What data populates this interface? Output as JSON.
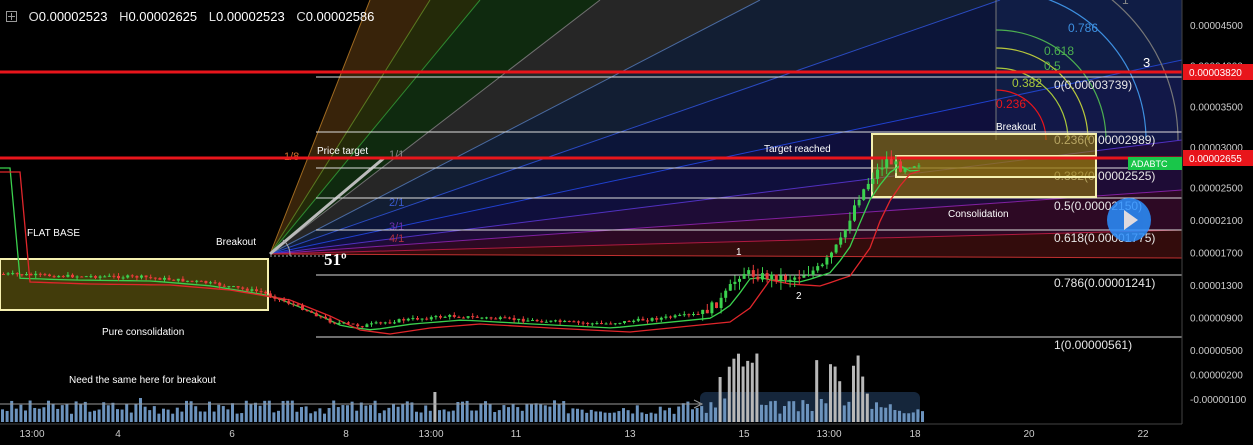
{
  "ohlc": {
    "open_label": "O",
    "open": "0.00002523",
    "high_label": "H",
    "high": "0.00002625",
    "low_label": "L",
    "low": "0.00002523",
    "close_label": "C",
    "close": "0.00002586"
  },
  "chart_data": {
    "type": "candlestick",
    "symbol_badge": "ADABTC",
    "y_axis_ticks": [
      "0.00004500",
      "0.00004000",
      "0.00003500",
      "0.00003000",
      "0.00002500",
      "0.00002100",
      "0.00001700",
      "0.00001300",
      "0.00000900",
      "0.00000500",
      "0.00000200",
      "-0.00000100"
    ],
    "x_axis_ticks": [
      "13:00",
      "4",
      "6",
      "8",
      "13:00",
      "11",
      "13",
      "15",
      "13:00",
      "18",
      "20",
      "22"
    ],
    "price_markers": [
      {
        "price": "0.00003820",
        "color": "#e8151b"
      },
      {
        "price": "0.00002655",
        "color": "#e8151b"
      }
    ],
    "fib_retracement_levels": [
      {
        "label": "0(0.00003739)",
        "price": 3.739e-05
      },
      {
        "label": "0.236(0.00002989)",
        "price": 2.989e-05
      },
      {
        "label": "0.382(0.00002525)",
        "price": 2.525e-05
      },
      {
        "label": "0.5(0.00002150)",
        "price": 2.15e-05
      },
      {
        "label": "0.618(0.00001775)",
        "price": 1.775e-05
      },
      {
        "label": "0.786(0.00001241)",
        "price": 1.241e-05
      },
      {
        "label": "1(0.00000561)",
        "price": 5.61e-06
      }
    ],
    "fib_arc_labels": [
      {
        "label": "0.786",
        "color": "#3d8fe0"
      },
      {
        "label": "0.618",
        "color": "#4caf50"
      },
      {
        "label": "0.5",
        "color": "#4caf50"
      },
      {
        "label": "0.382",
        "color": "#a8c83c"
      },
      {
        "label": "0.236",
        "color": "#e8151b"
      },
      {
        "label": "1",
        "color": "#888888"
      }
    ],
    "gann_fan_labels": [
      "1/8",
      "1/1",
      "2/1",
      "3/1",
      "4/1"
    ],
    "angle_label": "51º",
    "annotations": [
      "FLAT BASE",
      "Breakout",
      "Pure consolidation",
      "Price target",
      "Need the same here for breakout",
      "Target reached",
      "Breakout",
      "Consolidation",
      "1",
      "2",
      "3"
    ]
  }
}
